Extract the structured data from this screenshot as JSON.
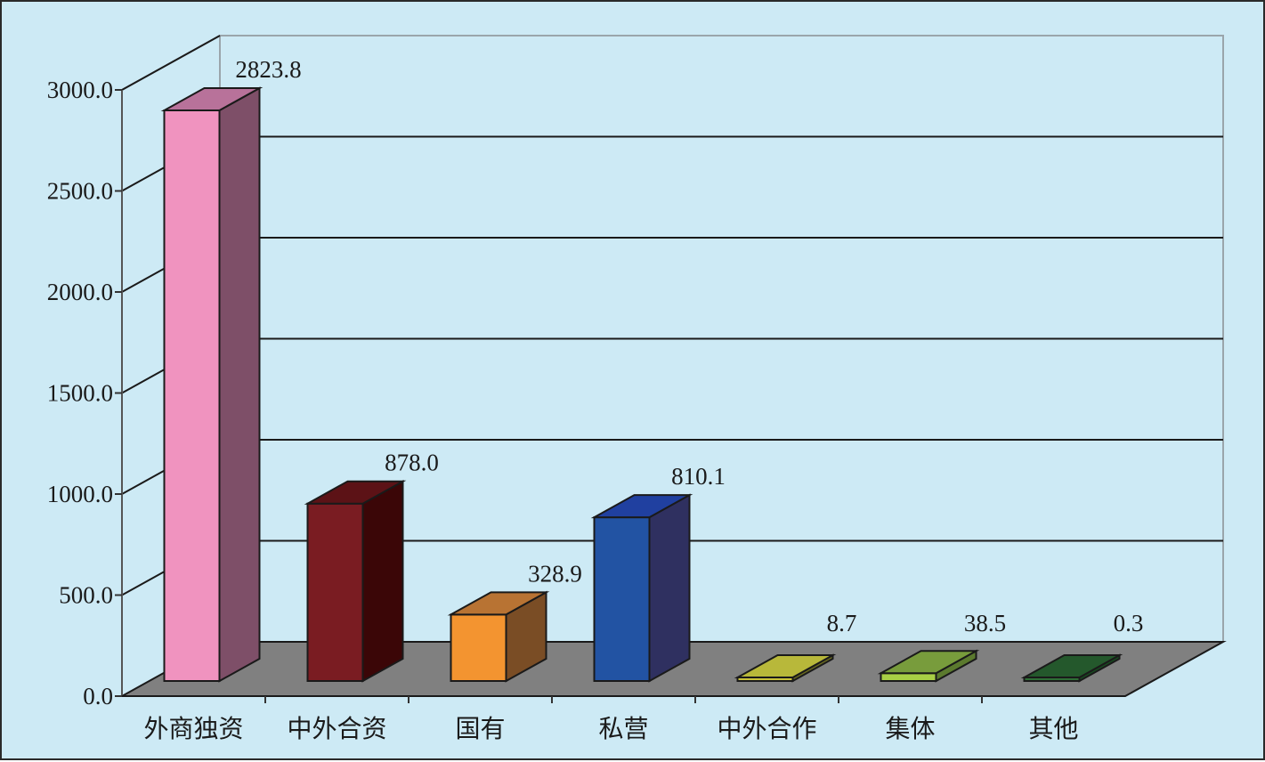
{
  "chart_data": {
    "type": "bar",
    "categories": [
      "外商独资",
      "中外合资",
      "国有",
      "私营",
      "中外合作",
      "集体",
      "其他"
    ],
    "values": [
      2823.8,
      878.0,
      328.9,
      810.1,
      8.7,
      38.5,
      0.3
    ],
    "value_labels": [
      "2823.8",
      "878.0",
      "328.9",
      "810.1",
      "8.7",
      "38.5",
      "0.3"
    ],
    "y_ticks": [
      "0.0",
      "500.0",
      "1000.0",
      "1500.0",
      "2000.0",
      "2500.0",
      "3000.0"
    ],
    "ylim": [
      0,
      3000
    ],
    "grid": true,
    "legend": "none",
    "three_d": true,
    "colors": {
      "background": "#cdeaf5",
      "floor": "#808080",
      "grid": "#1a1a1a",
      "bars": [
        {
          "front": "#f093bf",
          "side": "#7e4f68",
          "top": "#b8729a"
        },
        {
          "front": "#7a1c22",
          "side": "#3b0607",
          "top": "#5c1216"
        },
        {
          "front": "#f39430",
          "side": "#7a4d25",
          "top": "#b87333"
        },
        {
          "front": "#2253a3",
          "side": "#2f3060",
          "top": "#2040a0"
        },
        {
          "front": "#c9c33b",
          "side": "#6a6a20",
          "top": "#b8b83a"
        },
        {
          "front": "#a8cf45",
          "side": "#5b7a2e",
          "top": "#789c3c"
        },
        {
          "front": "#2e6e35",
          "side": "#184a20",
          "top": "#24582c"
        }
      ]
    }
  }
}
